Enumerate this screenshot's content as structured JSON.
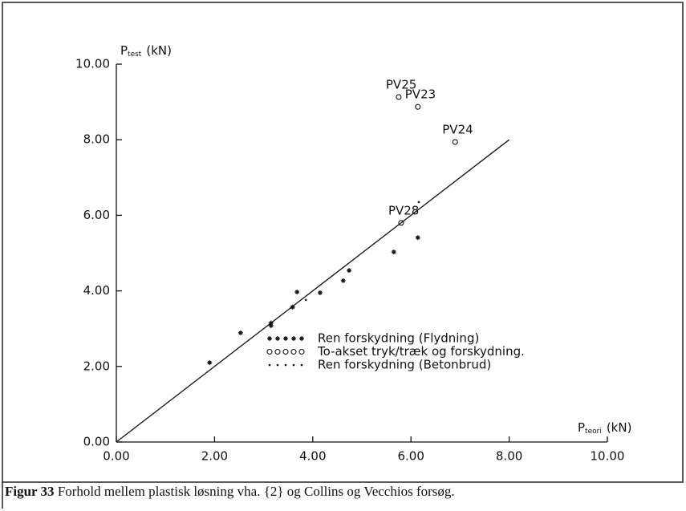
{
  "chart_data": {
    "type": "scatter",
    "y_label": {
      "main": "P",
      "sub": "test",
      "unit": "(kN)"
    },
    "x_label": {
      "main": "P",
      "sub": "teori",
      "unit": "(kN)"
    },
    "xlim": [
      0,
      10
    ],
    "ylim": [
      0,
      10
    ],
    "xticks": [
      {
        "value": 0,
        "label": "0.00"
      },
      {
        "value": 2,
        "label": "2.00"
      },
      {
        "value": 4,
        "label": "4.00"
      },
      {
        "value": 6,
        "label": "6.00"
      },
      {
        "value": 8,
        "label": "8.00"
      },
      {
        "value": 10,
        "label": "10.00"
      }
    ],
    "yticks": [
      {
        "value": 0,
        "label": "0.00"
      },
      {
        "value": 2,
        "label": "2.00"
      },
      {
        "value": 4,
        "label": "4.00"
      },
      {
        "value": 6,
        "label": "6.00"
      },
      {
        "value": 8,
        "label": "8.00"
      },
      {
        "value": 10,
        "label": "10.00"
      }
    ],
    "diagonal": {
      "x": [
        0,
        8
      ],
      "y": [
        0,
        8
      ]
    },
    "series": [
      {
        "name": "Ren forskydning (Flydning)",
        "marker": "star",
        "color": "#111111",
        "x": [
          1.9,
          2.53,
          3.15,
          3.15,
          3.59,
          3.68,
          4.15,
          4.62,
          4.74,
          5.65,
          6.14
        ],
        "values": [
          2.1,
          2.89,
          3.08,
          3.15,
          3.57,
          3.97,
          3.95,
          4.27,
          4.54,
          5.03,
          5.41
        ]
      },
      {
        "name": "To-akset tryk/træk og forskydning.",
        "marker": "circle",
        "color": "#111111",
        "x": [
          5.75,
          6.14,
          6.9,
          5.8
        ],
        "values": [
          9.13,
          8.87,
          7.94,
          5.8
        ],
        "labels": [
          "PV25",
          "PV23",
          "PV24",
          "PV28"
        ]
      },
      {
        "name": "Ren forskydning (Betonbrud)",
        "marker": "dot",
        "color": "#111111",
        "x": [
          3.86,
          6.16
        ],
        "values": [
          3.76,
          6.35
        ]
      }
    ],
    "caption": {
      "label": "Figur 33",
      "text": "Forhold mellem plastisk løsning vha. {2} og Collins og Vecchios forsøg."
    }
  }
}
